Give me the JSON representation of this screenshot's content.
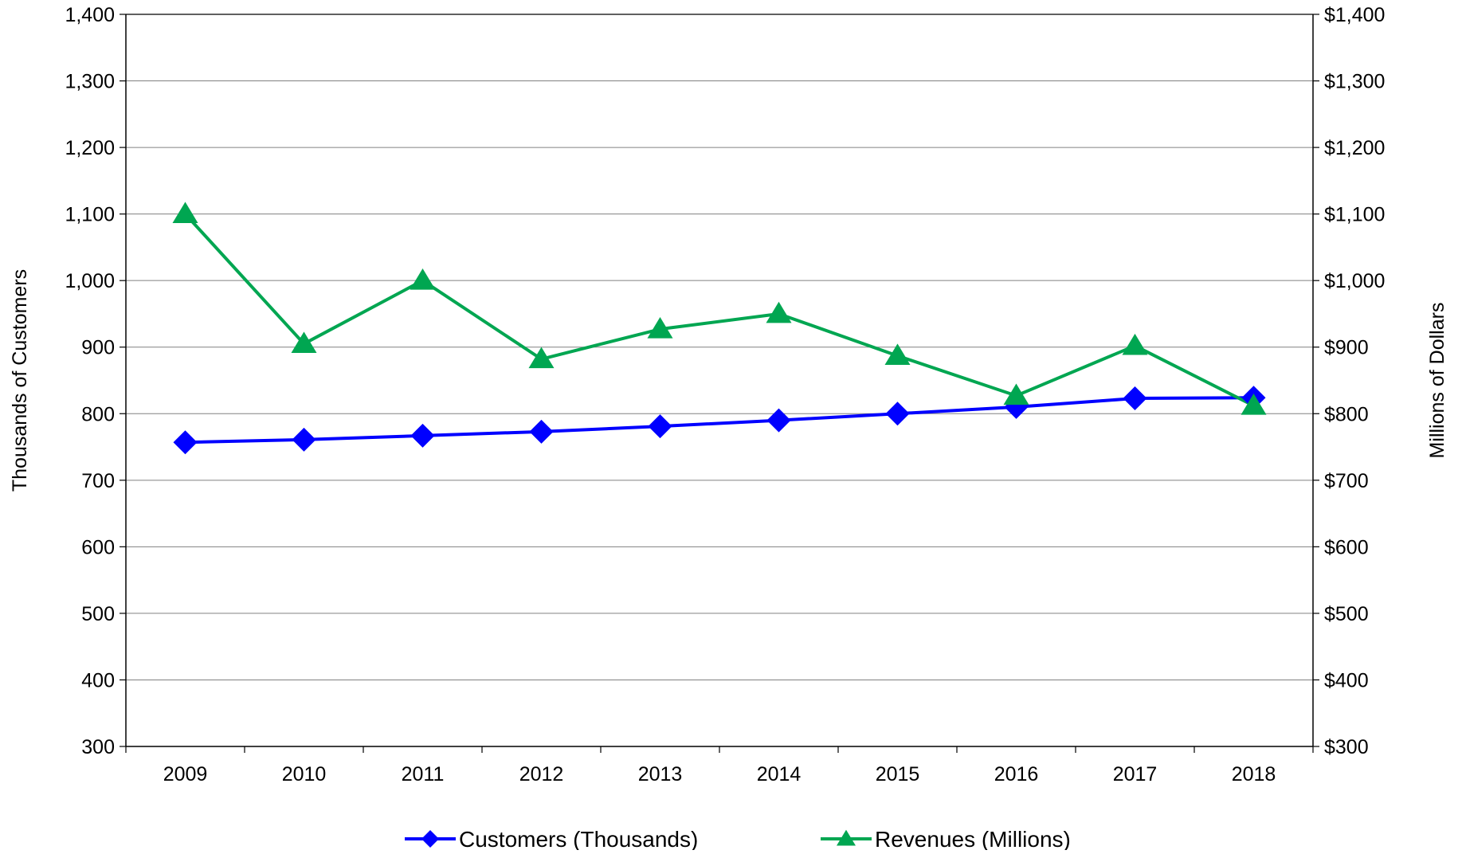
{
  "chart_data": {
    "type": "line",
    "categories": [
      "2009",
      "2010",
      "2011",
      "2012",
      "2013",
      "2014",
      "2015",
      "2016",
      "2017",
      "2018"
    ],
    "series": [
      {
        "name": "Customers (Thousands)",
        "axis": "left",
        "color": "#0000FF",
        "marker": "diamond",
        "values": [
          757,
          761,
          767,
          773,
          781,
          790,
          800,
          810,
          823,
          824
        ]
      },
      {
        "name": "Revenues (Millions)",
        "axis": "right",
        "color": "#00A651",
        "marker": "triangle",
        "values": [
          1100,
          905,
          1000,
          882,
          927,
          950,
          887,
          827,
          902,
          812
        ]
      }
    ],
    "y_left": {
      "label": "Thousands of Customers",
      "range": [
        300,
        1400
      ],
      "ticks": [
        "1,400",
        "1,300",
        "1,200",
        "1,100",
        "1,000",
        "900",
        "800",
        "700",
        "600",
        "500",
        "400",
        "300"
      ]
    },
    "y_right": {
      "label": "Millions of Dollars",
      "range": [
        300,
        1400
      ],
      "ticks": [
        "$1,400",
        "$1,300",
        "$1,200",
        "$1,100",
        "$1,000",
        "$900",
        "$800",
        "$700",
        "$600",
        "$500",
        "$400",
        "$300"
      ]
    },
    "grid": true,
    "legend_position": "bottom"
  }
}
